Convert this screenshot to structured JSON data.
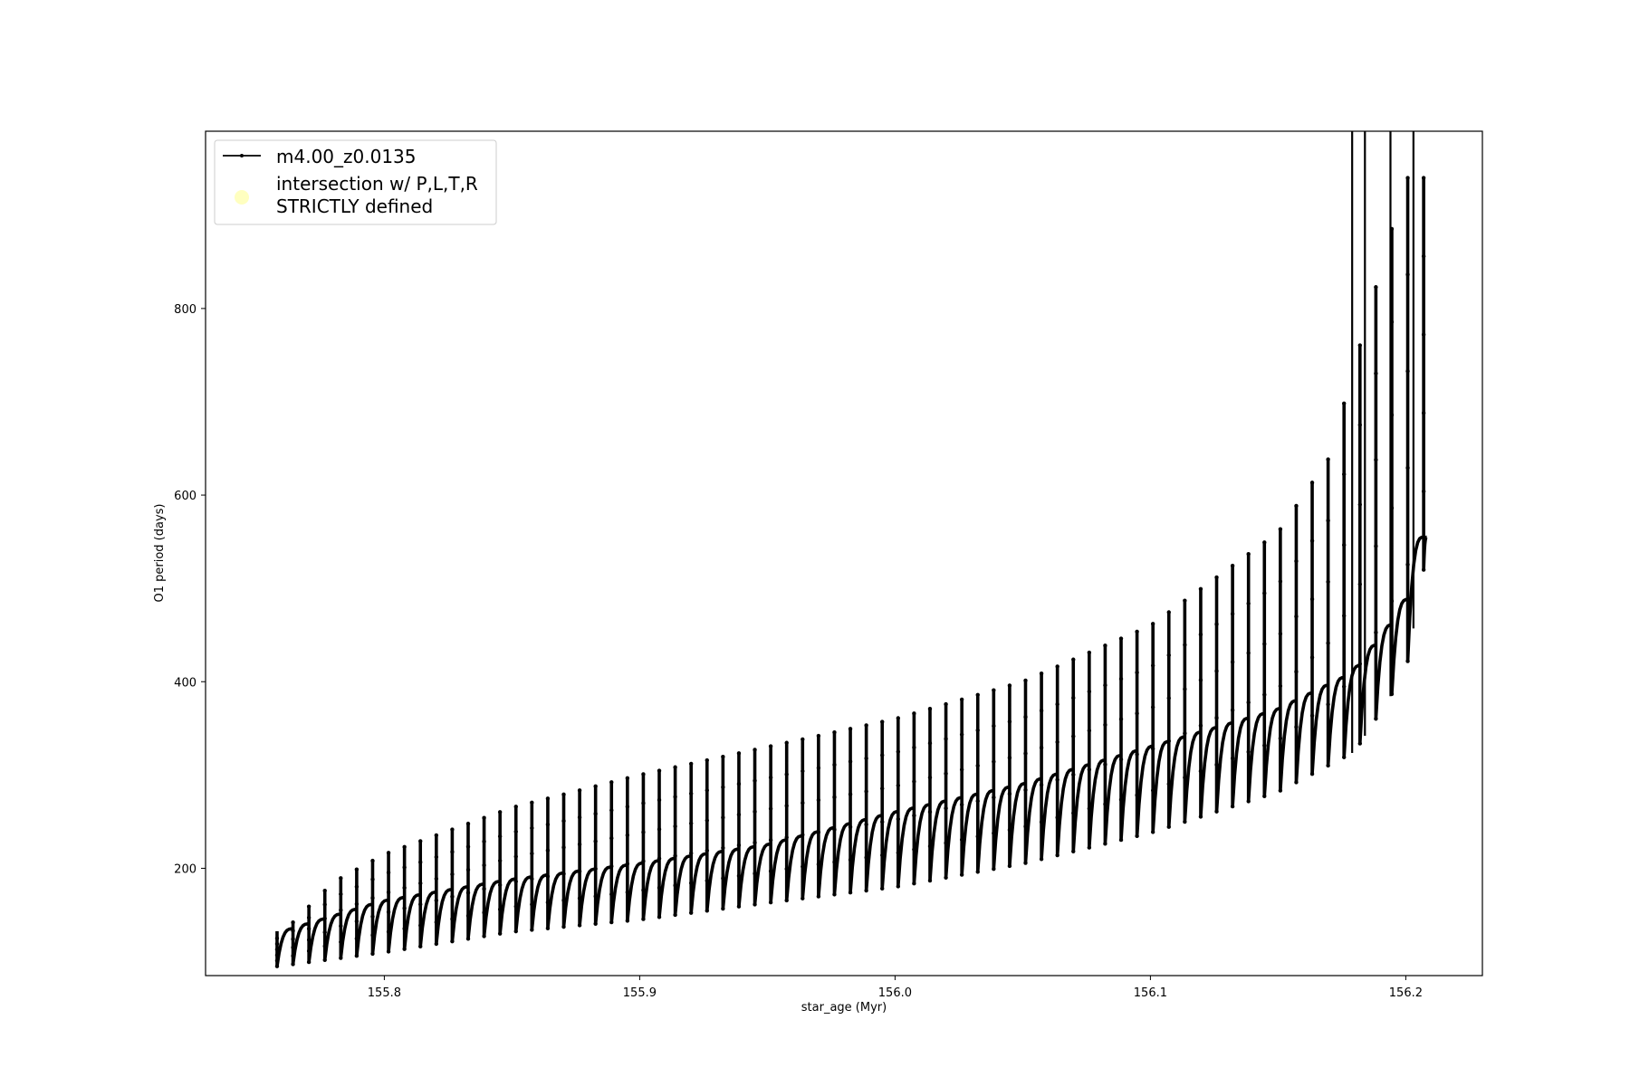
{
  "chart_data": {
    "type": "line",
    "xlabel": "star_age (Myr)",
    "ylabel": "O1 period (days)",
    "xlim": [
      155.73,
      156.23
    ],
    "ylim": [
      85,
      990
    ],
    "xticks": [
      155.8,
      155.9,
      156.0,
      156.1,
      156.2
    ],
    "xtick_labels": [
      "155.8",
      "155.9",
      "156.0",
      "156.1",
      "156.2"
    ],
    "yticks": [
      200,
      400,
      600,
      800
    ],
    "ytick_labels": [
      "200",
      "400",
      "600",
      "800"
    ],
    "grid": false,
    "legend_position": "top-left",
    "legend": [
      {
        "label": "m4.00_z0.0135",
        "marker": "line-dot",
        "color": "#000000"
      },
      {
        "label_lines": [
          "intersection w/ P,L,T,R",
          "STRICTLY defined"
        ],
        "marker": "circle",
        "color": "#ffffc0"
      }
    ],
    "series": [
      {
        "name": "m4.00_z0.0135",
        "color": "#000000",
        "pulse_start_x": 155.758,
        "pulse_end_x": 156.207,
        "pulse_count": 73,
        "baseline": {
          "x": [
            155.758,
            155.8,
            155.85,
            155.9,
            155.95,
            156.0,
            156.05,
            156.1,
            156.15,
            156.18,
            156.2,
            156.207
          ],
          "y": [
            95,
            110,
            132,
            145,
            163,
            180,
            205,
            238,
            282,
            325,
            410,
            520
          ]
        },
        "plateau": {
          "x": [
            155.758,
            155.8,
            155.85,
            155.9,
            155.95,
            156.0,
            156.05,
            156.1,
            156.15,
            156.18,
            156.2,
            156.207
          ],
          "y": [
            130,
            165,
            188,
            205,
            225,
            260,
            290,
            330,
            370,
            410,
            480,
            555
          ]
        },
        "spike": {
          "x": [
            155.758,
            155.78,
            155.8,
            155.85,
            155.9,
            155.95,
            156.0,
            156.05,
            156.1,
            156.15,
            156.17,
            156.2
          ],
          "y": [
            125,
            185,
            215,
            265,
            300,
            330,
            360,
            400,
            460,
            560,
            640,
            940
          ]
        },
        "off_scale_spikes_x": [
          156.179,
          156.184,
          156.194,
          156.203
        ]
      }
    ]
  }
}
